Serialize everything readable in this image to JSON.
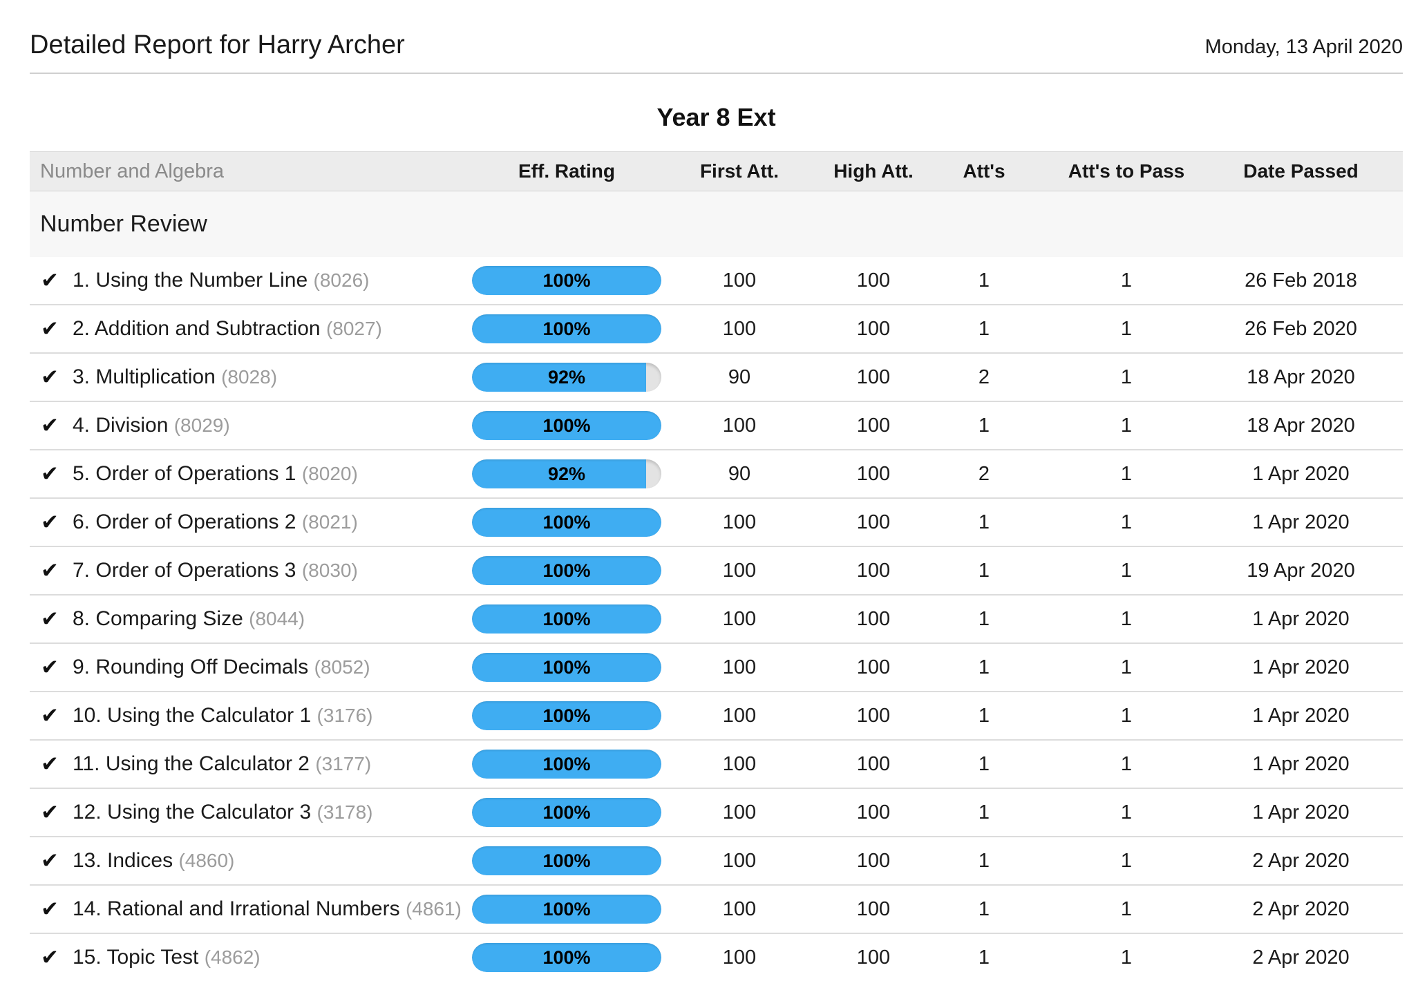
{
  "header": {
    "title": "Detailed Report for Harry Archer",
    "date": "Monday, 13 April 2020"
  },
  "report": {
    "class_title": "Year 8 Ext"
  },
  "icons": {
    "check": "✔"
  },
  "colors": {
    "bar_fill": "#3fadf2",
    "bar_track": "#e3e3e3",
    "header_band": "#ececec",
    "section_band": "#f7f7f7"
  },
  "table": {
    "strand_label": "Number and Algebra",
    "columns": [
      "Eff. Rating",
      "First Att.",
      "High Att.",
      "Att's",
      "Att's to Pass",
      "Date Passed"
    ],
    "section_title": "Number Review",
    "rows": [
      {
        "title": "1. Using the Number Line",
        "id": "(8026)",
        "rating": 100,
        "rating_label": "100%",
        "first_att": "100",
        "high_att": "100",
        "atts": "1",
        "atts_to_pass": "1",
        "date_passed": "26 Feb 2018"
      },
      {
        "title": "2. Addition and Subtraction",
        "id": "(8027)",
        "rating": 100,
        "rating_label": "100%",
        "first_att": "100",
        "high_att": "100",
        "atts": "1",
        "atts_to_pass": "1",
        "date_passed": "26 Feb 2020"
      },
      {
        "title": "3. Multiplication",
        "id": "(8028)",
        "rating": 92,
        "rating_label": "92%",
        "first_att": "90",
        "high_att": "100",
        "atts": "2",
        "atts_to_pass": "1",
        "date_passed": "18 Apr 2020"
      },
      {
        "title": "4. Division",
        "id": "(8029)",
        "rating": 100,
        "rating_label": "100%",
        "first_att": "100",
        "high_att": "100",
        "atts": "1",
        "atts_to_pass": "1",
        "date_passed": "18 Apr 2020"
      },
      {
        "title": "5. Order of Operations 1",
        "id": "(8020)",
        "rating": 92,
        "rating_label": "92%",
        "first_att": "90",
        "high_att": "100",
        "atts": "2",
        "atts_to_pass": "1",
        "date_passed": "1 Apr 2020"
      },
      {
        "title": "6. Order of Operations 2",
        "id": "(8021)",
        "rating": 100,
        "rating_label": "100%",
        "first_att": "100",
        "high_att": "100",
        "atts": "1",
        "atts_to_pass": "1",
        "date_passed": "1 Apr 2020"
      },
      {
        "title": "7. Order of Operations 3",
        "id": "(8030)",
        "rating": 100,
        "rating_label": "100%",
        "first_att": "100",
        "high_att": "100",
        "atts": "1",
        "atts_to_pass": "1",
        "date_passed": "19 Apr 2020"
      },
      {
        "title": "8. Comparing Size",
        "id": "(8044)",
        "rating": 100,
        "rating_label": "100%",
        "first_att": "100",
        "high_att": "100",
        "atts": "1",
        "atts_to_pass": "1",
        "date_passed": "1 Apr 2020"
      },
      {
        "title": "9. Rounding Off Decimals",
        "id": "(8052)",
        "rating": 100,
        "rating_label": "100%",
        "first_att": "100",
        "high_att": "100",
        "atts": "1",
        "atts_to_pass": "1",
        "date_passed": "1 Apr 2020"
      },
      {
        "title": "10. Using the Calculator 1",
        "id": "(3176)",
        "rating": 100,
        "rating_label": "100%",
        "first_att": "100",
        "high_att": "100",
        "atts": "1",
        "atts_to_pass": "1",
        "date_passed": "1 Apr 2020"
      },
      {
        "title": "11. Using the Calculator 2",
        "id": "(3177)",
        "rating": 100,
        "rating_label": "100%",
        "first_att": "100",
        "high_att": "100",
        "atts": "1",
        "atts_to_pass": "1",
        "date_passed": "1 Apr 2020"
      },
      {
        "title": "12. Using the Calculator 3",
        "id": "(3178)",
        "rating": 100,
        "rating_label": "100%",
        "first_att": "100",
        "high_att": "100",
        "atts": "1",
        "atts_to_pass": "1",
        "date_passed": "1 Apr 2020"
      },
      {
        "title": "13. Indices",
        "id": "(4860)",
        "rating": 100,
        "rating_label": "100%",
        "first_att": "100",
        "high_att": "100",
        "atts": "1",
        "atts_to_pass": "1",
        "date_passed": "2 Apr 2020"
      },
      {
        "title": "14. Rational and Irrational Numbers",
        "id": "(4861)",
        "rating": 100,
        "rating_label": "100%",
        "first_att": "100",
        "high_att": "100",
        "atts": "1",
        "atts_to_pass": "1",
        "date_passed": "2 Apr 2020"
      },
      {
        "title": "15. Topic Test",
        "id": "(4862)",
        "rating": 100,
        "rating_label": "100%",
        "first_att": "100",
        "high_att": "100",
        "atts": "1",
        "atts_to_pass": "1",
        "date_passed": "2 Apr 2020"
      }
    ]
  }
}
